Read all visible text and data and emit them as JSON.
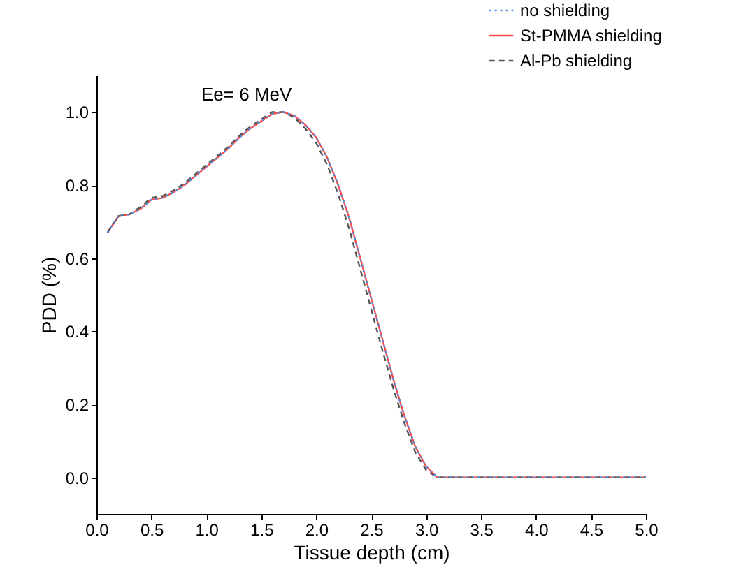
{
  "chart_data": {
    "type": "line",
    "xlabel": "Tissue depth (cm)",
    "ylabel": "PDD (%)",
    "annotations": [
      "Ee= 6 MeV"
    ],
    "xlim": [
      0,
      5
    ],
    "xticks": [
      {
        "value": 0,
        "label": "0.0"
      },
      0.5,
      {
        "value": 1,
        "label": "1.0"
      },
      1.5,
      {
        "value": 2,
        "label": "2.0"
      },
      2.5,
      {
        "value": 3,
        "label": "3.0"
      },
      3.5,
      {
        "value": 4,
        "label": "4.0"
      },
      4.5,
      {
        "value": 5,
        "label": "5.0"
      }
    ],
    "ylim": [
      -0.1,
      1.1
    ],
    "yticks": [
      {
        "value": 0,
        "label": "0.0"
      },
      0.2,
      0.4,
      0.6,
      0.8,
      {
        "value": 1,
        "label": "1.0"
      }
    ],
    "grid": false,
    "legend": "top right",
    "marker": "none",
    "x": [
      0.1,
      0.2,
      0.3,
      0.4,
      0.5,
      0.6,
      0.7,
      0.8,
      0.9,
      1.0,
      1.1,
      1.2,
      1.3,
      1.4,
      1.5,
      1.6,
      1.7,
      1.8,
      1.9,
      2.0,
      2.1,
      2.2,
      2.3,
      2.4,
      2.5,
      2.6,
      2.7,
      2.8,
      2.9,
      3.0,
      3.1,
      3.5,
      4.0,
      4.5,
      5.0
    ],
    "series": [
      {
        "name": "no shielding",
        "color": "#4a90e2",
        "line_style": "dotted",
        "values": [
          0.67,
          0.715,
          0.72,
          0.735,
          0.76,
          0.765,
          0.78,
          0.8,
          0.825,
          0.85,
          0.875,
          0.9,
          0.93,
          0.955,
          0.975,
          0.995,
          1.0,
          0.99,
          0.965,
          0.93,
          0.875,
          0.8,
          0.71,
          0.6,
          0.49,
          0.38,
          0.27,
          0.17,
          0.085,
          0.03,
          0.0,
          0.0,
          0.0,
          0.0,
          0.0
        ]
      },
      {
        "name": "St-PMMA shielding",
        "color": "#ff4b4b",
        "line_style": "solid",
        "values": [
          0.67,
          0.715,
          0.72,
          0.735,
          0.76,
          0.765,
          0.78,
          0.8,
          0.825,
          0.85,
          0.875,
          0.9,
          0.93,
          0.955,
          0.975,
          0.995,
          1.0,
          0.99,
          0.965,
          0.93,
          0.875,
          0.8,
          0.71,
          0.6,
          0.49,
          0.38,
          0.27,
          0.17,
          0.085,
          0.03,
          0.0,
          0.0,
          0.0,
          0.0,
          0.0
        ]
      },
      {
        "name": "Al-Pb shielding",
        "color": "#555555",
        "line_style": "dashed",
        "values": [
          0.67,
          0.715,
          0.72,
          0.74,
          0.765,
          0.77,
          0.785,
          0.805,
          0.83,
          0.855,
          0.88,
          0.905,
          0.935,
          0.96,
          0.98,
          1.0,
          1.0,
          0.985,
          0.955,
          0.915,
          0.855,
          0.775,
          0.68,
          0.57,
          0.46,
          0.35,
          0.245,
          0.15,
          0.07,
          0.02,
          0.0,
          0.0,
          0.0,
          0.0,
          0.0
        ]
      }
    ]
  }
}
